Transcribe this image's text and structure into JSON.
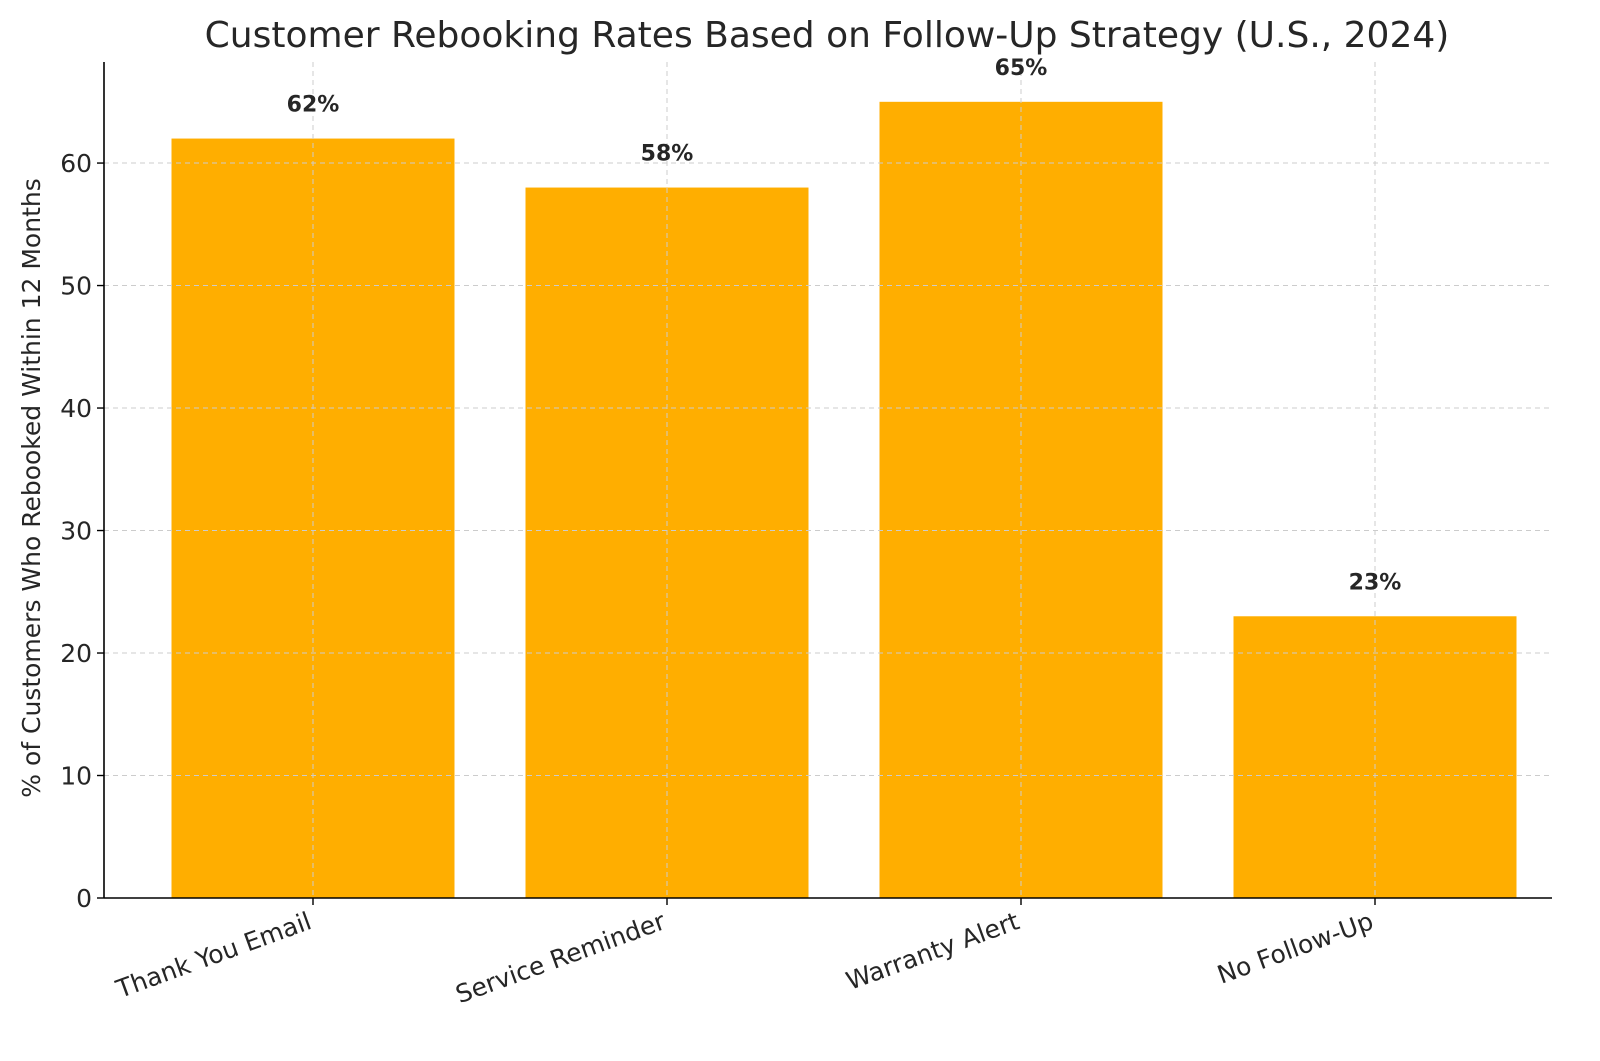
{
  "chart_data": {
    "type": "bar",
    "title": "Customer Rebooking Rates Based on Follow-Up Strategy (U.S., 2024)",
    "xlabel": "",
    "ylabel": "% of Customers Who Rebooked Within 12 Months",
    "categories": [
      "Thank You Email",
      "Service Reminder",
      "Warranty Alert",
      "No Follow-Up"
    ],
    "values": [
      62,
      58,
      65,
      23
    ],
    "data_labels": [
      "62%",
      "58%",
      "65%",
      "23%"
    ],
    "ylim": [
      0,
      68.25
    ],
    "yticks": [
      0,
      10,
      20,
      30,
      40,
      50,
      60
    ],
    "grid": true,
    "bar_color": "#FFAE00",
    "label_color": "#262626"
  }
}
